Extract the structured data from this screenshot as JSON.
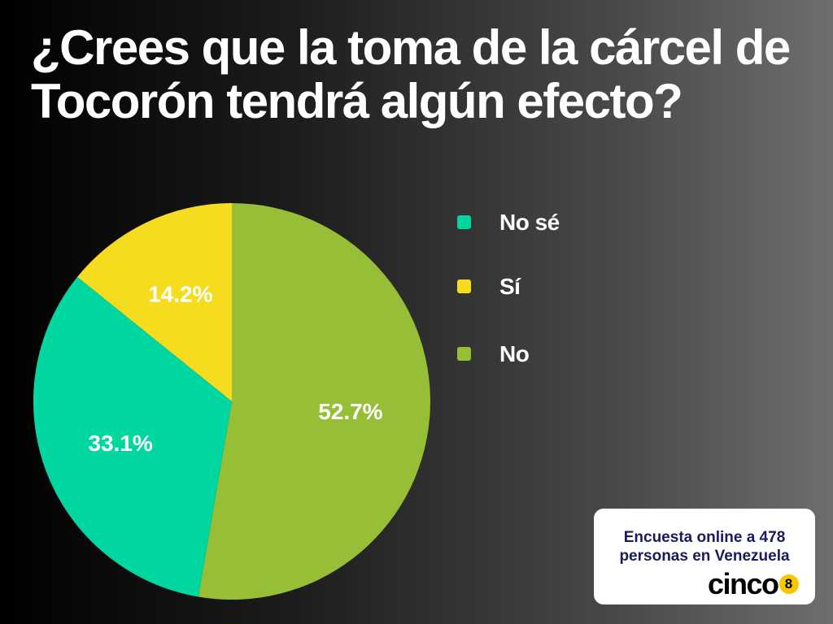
{
  "title": "¿Crees que la toma de la cárcel de Tocorón tendrá algún efecto?",
  "chart_data": {
    "type": "pie",
    "slices": [
      {
        "label": "No",
        "value": 52.7,
        "value_label": "52.7%",
        "color": "#96be37"
      },
      {
        "label": "No sé",
        "value": 33.1,
        "value_label": "33.1%",
        "color": "#00d7a0"
      },
      {
        "label": "Sí",
        "value": 14.2,
        "value_label": "14.2%",
        "color": "#f5dc1e"
      }
    ],
    "legend_order": [
      "No sé",
      "Sí",
      "No"
    ],
    "legend_placement": "right",
    "start": "top, clockwise"
  },
  "legend": [
    {
      "label": "No sé",
      "color": "#00d7a0"
    },
    {
      "label": "Sí",
      "color": "#f5dc1e"
    },
    {
      "label": "No",
      "color": "#96be37"
    }
  ],
  "note": {
    "line1": "Encuesta online a 478",
    "line2": "personas en Venezuela"
  },
  "brand": {
    "word": "cinco",
    "badge": "8",
    "badge_color": "#f5c800"
  }
}
